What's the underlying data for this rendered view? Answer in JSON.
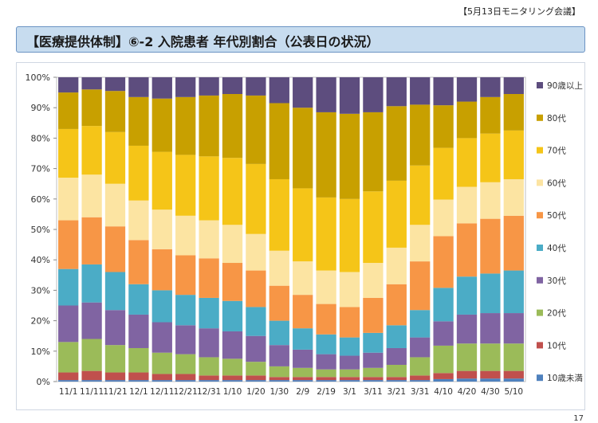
{
  "header": {
    "meeting_label": "【5月13日モニタリング会議】"
  },
  "banner": {
    "title": "【医療提供体制】⑥-2 入院患者 年代別割合（公表日の状況）"
  },
  "page_number": "17",
  "chart_data": {
    "type": "bar",
    "stacked": true,
    "percent_stacked": true,
    "title": "",
    "xlabel": "",
    "ylabel": "",
    "ylim": [
      0,
      100
    ],
    "y_ticks": [
      "0%",
      "10%",
      "20%",
      "30%",
      "40%",
      "50%",
      "60%",
      "70%",
      "80%",
      "90%",
      "100%"
    ],
    "x_tick_labels": [
      "11/1",
      "11/11",
      "11/21",
      "12/1",
      "12/11",
      "12/21",
      "12/31",
      "1/10",
      "1/20",
      "1/30",
      "2/9",
      "2/19",
      "3/1",
      "3/11",
      "3/21",
      "3/31",
      "4/10",
      "4/20",
      "4/30",
      "5/10"
    ],
    "legend_position": "right",
    "grid": false,
    "series": [
      {
        "name": "10歳未満",
        "color": "#4f81bd",
        "values": [
          0.5,
          0.5,
          0.5,
          0.5,
          0.5,
          0.5,
          0.5,
          0.5,
          0.5,
          0.5,
          0.5,
          0.5,
          0.5,
          0.5,
          0.5,
          0.5,
          0.8,
          1.0,
          1.0,
          1.0
        ]
      },
      {
        "name": "10代",
        "color": "#c0504d",
        "values": [
          2.5,
          3.0,
          2.5,
          2.5,
          2.0,
          2.0,
          1.5,
          1.5,
          1.5,
          1.0,
          1.0,
          1.0,
          1.0,
          1.0,
          1.0,
          1.5,
          2.0,
          2.5,
          2.5,
          2.5
        ]
      },
      {
        "name": "20代",
        "color": "#9bbb59",
        "values": [
          10.0,
          10.5,
          9.0,
          8.0,
          7.0,
          6.5,
          6.0,
          5.5,
          4.5,
          3.5,
          3.0,
          2.5,
          2.5,
          3.0,
          4.0,
          6.0,
          9.0,
          9.0,
          9.0,
          9.0
        ]
      },
      {
        "name": "30代",
        "color": "#8064a2",
        "values": [
          12.0,
          12.0,
          11.5,
          11.0,
          10.0,
          9.5,
          9.5,
          9.0,
          8.5,
          7.0,
          6.0,
          5.0,
          4.5,
          5.0,
          5.5,
          6.5,
          8.0,
          9.5,
          10.0,
          10.0
        ]
      },
      {
        "name": "40代",
        "color": "#4bacc6",
        "values": [
          12.0,
          12.5,
          12.5,
          10.0,
          10.5,
          10.0,
          10.0,
          10.0,
          9.5,
          8.0,
          7.0,
          6.5,
          6.0,
          6.5,
          7.5,
          9.0,
          11.0,
          12.5,
          13.0,
          14.0
        ]
      },
      {
        "name": "50代",
        "color": "#f79646",
        "values": [
          16.0,
          15.5,
          15.0,
          14.5,
          13.5,
          13.0,
          13.0,
          12.5,
          12.0,
          11.5,
          11.0,
          10.0,
          10.0,
          11.5,
          13.5,
          16.0,
          17.0,
          17.5,
          18.0,
          18.0
        ]
      },
      {
        "name": "60代",
        "color": "#fce4a2",
        "values": [
          14.0,
          14.0,
          14.0,
          13.0,
          13.0,
          13.0,
          12.5,
          12.5,
          12.0,
          11.5,
          11.0,
          11.0,
          11.5,
          11.5,
          12.0,
          12.0,
          12.0,
          12.0,
          12.0,
          12.0
        ]
      },
      {
        "name": "70代",
        "color": "#f5c518",
        "values": [
          16.0,
          16.0,
          17.0,
          18.0,
          19.0,
          20.0,
          21.0,
          22.0,
          23.0,
          23.5,
          24.0,
          24.0,
          24.0,
          23.5,
          22.0,
          19.5,
          17.0,
          16.0,
          16.0,
          16.0
        ]
      },
      {
        "name": "80代",
        "color": "#c8a000",
        "values": [
          12.0,
          12.0,
          13.5,
          16.0,
          17.5,
          19.0,
          20.0,
          21.0,
          22.5,
          25.0,
          26.5,
          28.0,
          28.0,
          26.0,
          24.5,
          20.0,
          14.0,
          12.0,
          12.0,
          12.0
        ]
      },
      {
        "name": "90歳以上",
        "color": "#5d4d7e",
        "values": [
          5.0,
          4.0,
          4.5,
          6.5,
          7.0,
          6.5,
          6.0,
          5.5,
          6.0,
          8.5,
          10.0,
          11.5,
          12.0,
          11.5,
          9.5,
          9.0,
          9.2,
          8.0,
          6.5,
          5.5
        ]
      }
    ]
  }
}
